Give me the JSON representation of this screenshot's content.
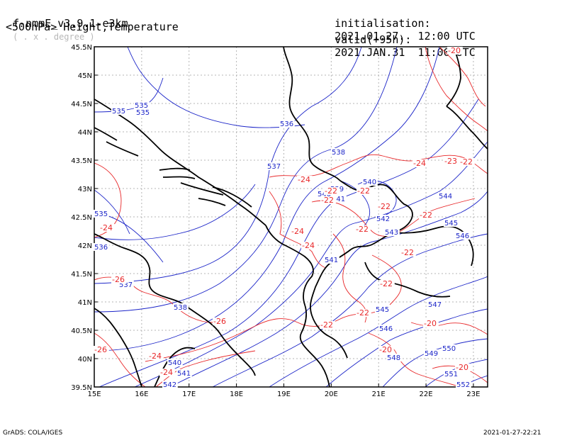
{
  "header": {
    "model": "f-nmmE_v3.9.1-e3km",
    "unit": "( . x . degree )",
    "field": "<500hPa> Height,Temperature",
    "init_label": "initialisation:",
    "init_value": "2021.01.27.  12:00 UTC",
    "valid_label": "valid(+95h):",
    "valid_value": "2021.JAN.31  11:00 UTC"
  },
  "footer": {
    "left": "GrADS: COLA/IGES",
    "right": "2021-01-27-22:21"
  },
  "axes": {
    "lon_labels": [
      "15E",
      "16E",
      "17E",
      "18E",
      "19E",
      "20E",
      "21E",
      "22E",
      "23E"
    ],
    "lat_labels": [
      "45.5N",
      "45N",
      "44.5N",
      "44N",
      "43.5N",
      "43N",
      "42.5N",
      "42N",
      "41.5N",
      "41N",
      "40.5N",
      "40N",
      "39.5N"
    ]
  },
  "colors": {
    "height_contour": "#1b24c8",
    "temperature_contour": "#e8282a",
    "coastline": "#000000",
    "grid": "#b4b4b4"
  },
  "contour_labels": {
    "height": [
      "535",
      "535",
      "535",
      "536",
      "538",
      "537",
      "540",
      "539",
      "541",
      "542",
      "543",
      "540",
      "541",
      "544",
      "545",
      "546",
      "535",
      "536",
      "537",
      "538",
      "540",
      "541",
      "542",
      "545",
      "546",
      "547",
      "548",
      "549",
      "550",
      "551",
      "552"
    ],
    "temperature": [
      "-24",
      "-24",
      "-24",
      "-22",
      "-22",
      "-22",
      "-22",
      "-22",
      "-22",
      "-23",
      "-22",
      "-24",
      "-24",
      "-22",
      "-22",
      "-22",
      "-22",
      "-26",
      "-26",
      "-26",
      "-24",
      "-24",
      "-20",
      "-20",
      "-20",
      "-20"
    ]
  }
}
